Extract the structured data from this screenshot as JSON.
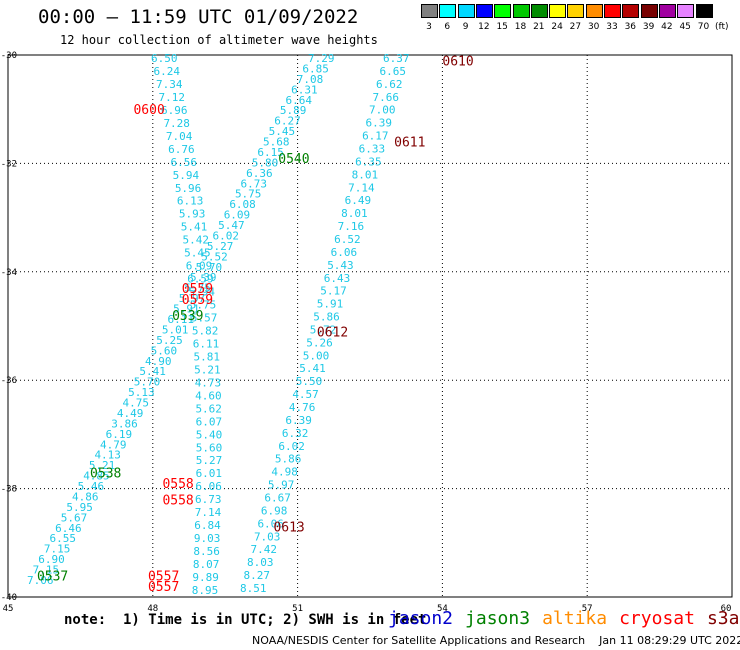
{
  "title": "00:00 – 11:59 UTC 01/09/2022",
  "subtitle": "12 hour collection of altimeter wave heights",
  "legend": {
    "unit": "(ft)",
    "bins": [
      {
        "label": "3",
        "color": "#808080"
      },
      {
        "label": "6",
        "color": "#00ffff"
      },
      {
        "label": "9",
        "color": "#00d8ff"
      },
      {
        "label": "12",
        "color": "#0000ff"
      },
      {
        "label": "15",
        "color": "#00ff00"
      },
      {
        "label": "18",
        "color": "#00c800"
      },
      {
        "label": "21",
        "color": "#008c00"
      },
      {
        "label": "24",
        "color": "#ffff00"
      },
      {
        "label": "27",
        "color": "#ffd200"
      },
      {
        "label": "30",
        "color": "#ff8c00"
      },
      {
        "label": "33",
        "color": "#ff0000"
      },
      {
        "label": "36",
        "color": "#b40000"
      },
      {
        "label": "39",
        "color": "#780000"
      },
      {
        "label": "42",
        "color": "#a000a0"
      },
      {
        "label": "45",
        "color": "#e682ff"
      },
      {
        "label": "70",
        "color": "#000000"
      }
    ]
  },
  "axes": {
    "lon_ticks": [
      "45",
      "48",
      "51",
      "54",
      "57",
      "60"
    ],
    "lat_ticks": [
      "-30",
      "-32",
      "-34",
      "-36",
      "-38",
      "-40"
    ]
  },
  "colors": {
    "wave_value": "#1ec8e6",
    "jason2": "#0000cc",
    "jason3": "#008000",
    "altika": "#ff8c00",
    "cryosat": "#ff0000",
    "s3a": "#800000"
  },
  "time_labels": [
    {
      "text": "0610",
      "lon": 54.0,
      "lat": -30.1,
      "sat": "s3a"
    },
    {
      "text": "0611",
      "lon": 53.0,
      "lat": -31.6,
      "sat": "s3a"
    },
    {
      "text": "0612",
      "lon": 51.4,
      "lat": -35.1,
      "sat": "s3a"
    },
    {
      "text": "0613",
      "lon": 50.5,
      "lat": -38.7,
      "sat": "s3a"
    },
    {
      "text": "0600",
      "lon": 47.6,
      "lat": -31.0,
      "sat": "cryosat"
    },
    {
      "text": "0559",
      "lon": 48.6,
      "lat": -34.3,
      "sat": "cryosat"
    },
    {
      "text": "0559",
      "lon": 48.6,
      "lat": -34.5,
      "sat": "cryosat"
    },
    {
      "text": "0558",
      "lon": 48.2,
      "lat": -37.9,
      "sat": "cryosat"
    },
    {
      "text": "0558",
      "lon": 48.2,
      "lat": -38.2,
      "sat": "cryosat"
    },
    {
      "text": "0557",
      "lon": 47.9,
      "lat": -39.6,
      "sat": "cryosat"
    },
    {
      "text": "0557",
      "lon": 47.9,
      "lat": -39.8,
      "sat": "cryosat"
    },
    {
      "text": "0540",
      "lon": 50.6,
      "lat": -31.9,
      "sat": "jason3"
    },
    {
      "text": "0539",
      "lon": 48.4,
      "lat": -34.8,
      "sat": "jason3"
    },
    {
      "text": "0538",
      "lon": 46.7,
      "lat": -37.7,
      "sat": "jason3"
    },
    {
      "text": "0537",
      "lon": 45.6,
      "lat": -39.6,
      "sat": "jason3"
    }
  ],
  "tracks": {
    "track1": [
      "6.50",
      "6.24",
      "7.34",
      "7.12",
      "6.96",
      "7.28",
      "7.04",
      "6.76",
      "6.56",
      "5.94",
      "5.96",
      "6.13",
      "5.93",
      "5.41",
      "5.42",
      "5.45",
      "6.09",
      "6.59",
      "5.94",
      "5.75",
      "5.57",
      "5.82",
      "6.11",
      "5.81",
      "5.21",
      "4.73",
      "4.60",
      "5.62",
      "6.07",
      "5.40",
      "5.60",
      "5.27",
      "6.01",
      "6.06",
      "6.73",
      "7.14",
      "6.84",
      "9.03",
      "8.56",
      "8.07",
      "9.89",
      "8.95"
    ],
    "track2": [
      "7.29",
      "6.85",
      "7.08",
      "6.31",
      "6.64",
      "5.89",
      "6.27",
      "5.45",
      "5.68",
      "6.15",
      "5.80",
      "6.36",
      "6.73",
      "5.75",
      "6.08",
      "6.09",
      "5.47",
      "6.02",
      "5.27",
      "5.52",
      "5.70",
      "5.39",
      "5.75",
      "5.97",
      "5.91",
      "6.11",
      "5.01",
      "5.25",
      "5.60",
      "4.90",
      "5.41",
      "5.70",
      "5.13",
      "4.75",
      "4.49",
      "3.86",
      "6.19",
      "4.79",
      "4.13",
      "5.21",
      "4.85",
      "5.46",
      "4.86",
      "5.95",
      "5.67",
      "6.46",
      "6.55",
      "7.15",
      "6.90",
      "7.15",
      "7.06"
    ],
    "track3": [
      "6.37",
      "6.65",
      "6.62",
      "7.66",
      "7.00",
      "6.39",
      "6.17",
      "6.33",
      "6.35",
      "8.01",
      "7.14",
      "6.49",
      "8.01",
      "7.16",
      "6.52",
      "6.06",
      "5.43",
      "6.43",
      "5.17",
      "5.91",
      "5.86",
      "5.72",
      "5.26",
      "5.00",
      "5.41",
      "5.50",
      "4.57",
      "4.76",
      "6.39",
      "6.32",
      "6.02",
      "5.86",
      "4.98",
      "5.97",
      "6.67",
      "6.98",
      "6.06",
      "7.03",
      "7.42",
      "8.03",
      "8.27",
      "8.51"
    ]
  },
  "footer": {
    "note": "note:  1) Time is in UTC; 2) SWH is in feet",
    "credit": "NOAA/NESDIS Center for Satellite Applications and Research    Jan 11 08:29:29 UTC 2022",
    "sats": [
      {
        "id": "jason2",
        "label": "jason2"
      },
      {
        "id": "jason3",
        "label": "jason3"
      },
      {
        "id": "altika",
        "label": "altika"
      },
      {
        "id": "cryosat",
        "label": "cryosat"
      },
      {
        "id": "s3a",
        "label": "s3a"
      }
    ]
  }
}
